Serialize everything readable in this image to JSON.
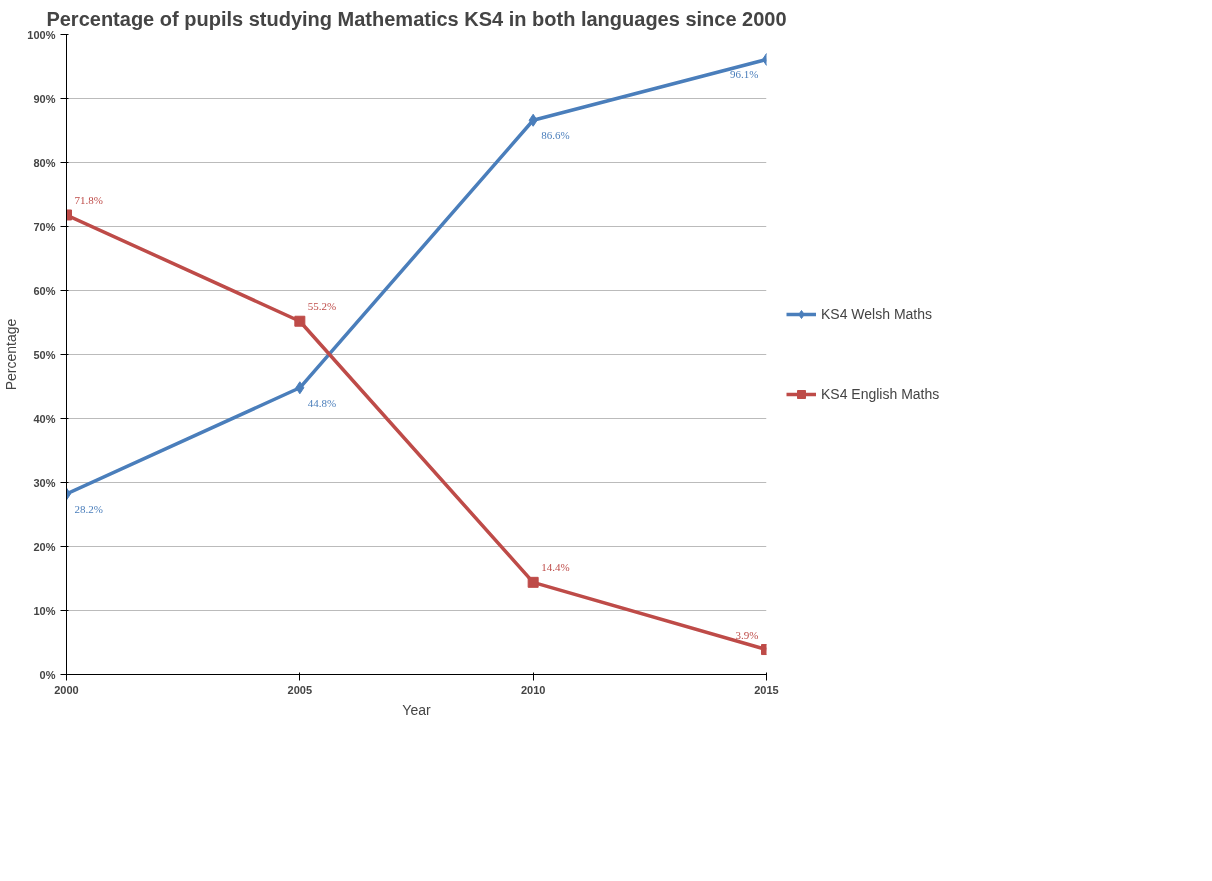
{
  "chart_data": {
    "type": "line",
    "title": "Percentage of pupils studying Mathematics KS4 in both languages since 2000",
    "xlabel": "Year",
    "ylabel": "Percentage",
    "x": [
      2000,
      2005,
      2010,
      2015
    ],
    "series": [
      {
        "name": "KS4 Welsh Maths",
        "color": "#4a7ebb",
        "marker": "diamond",
        "values": [
          28.2,
          44.8,
          86.6,
          96.1
        ],
        "value_labels": [
          "28.2%",
          "44.8%",
          "86.6%",
          "96.1%"
        ]
      },
      {
        "name": "KS4 English Maths",
        "color": "#be4b48",
        "marker": "square",
        "values": [
          71.8,
          55.2,
          14.4,
          3.9
        ],
        "value_labels": [
          "71.8%",
          "55.2%",
          "14.4%",
          "3.9%"
        ]
      }
    ],
    "xlim": [
      2000,
      2015
    ],
    "xticks": [
      2000,
      2005,
      2010,
      2015
    ],
    "ylim": [
      0,
      100
    ],
    "yticks": [
      {
        "value": 0,
        "label": "0%"
      },
      {
        "value": 10,
        "label": "10%"
      },
      {
        "value": 20,
        "label": "20%"
      },
      {
        "value": 30,
        "label": "30%"
      },
      {
        "value": 40,
        "label": "40%"
      },
      {
        "value": 50,
        "label": "50%"
      },
      {
        "value": 60,
        "label": "60%"
      },
      {
        "value": 70,
        "label": "70%"
      },
      {
        "value": 80,
        "label": "80%"
      },
      {
        "value": 90,
        "label": "90%"
      },
      {
        "value": 100,
        "label": "100%"
      }
    ],
    "grid": "y",
    "legend": "right",
    "line_style": "solid"
  }
}
